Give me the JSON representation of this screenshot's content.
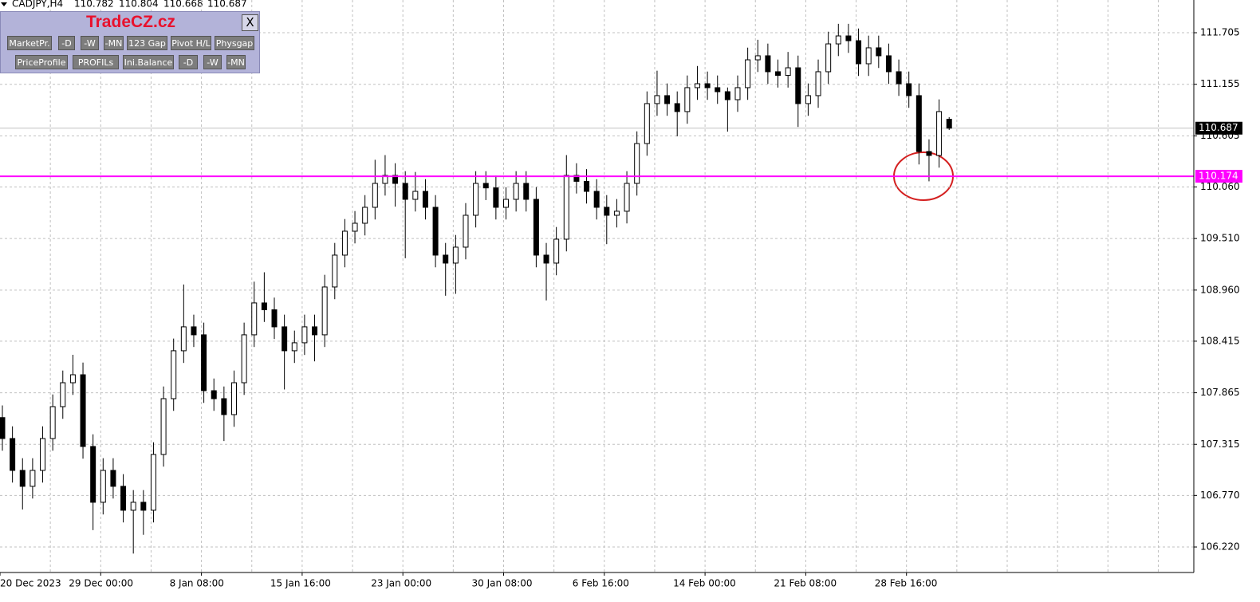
{
  "chart_data": {
    "type": "candlestick",
    "title": "CADJPY,H4",
    "categories": [
      "20 Dec 2023",
      null,
      null,
      null,
      null,
      null,
      null,
      null,
      null,
      null,
      "29 Dec 00:00",
      null,
      null,
      null,
      null,
      null,
      null,
      null,
      null,
      null,
      "8 Jan 08:00",
      null,
      null,
      null,
      null,
      null,
      null,
      null,
      null,
      null,
      "15 Jan 16:00",
      null,
      null,
      null,
      null,
      null,
      null,
      null,
      null,
      null,
      "23 Jan 00:00",
      null,
      null,
      null,
      null,
      null,
      null,
      null,
      null,
      null,
      "30 Jan 08:00",
      null,
      null,
      null,
      null,
      null,
      null,
      null,
      null,
      null,
      "6 Feb 16:00",
      null,
      null,
      null,
      null,
      null,
      null,
      null,
      null,
      null,
      "14 Feb 00:00",
      null,
      null,
      null,
      null,
      null,
      null,
      null,
      null,
      null,
      "21 Feb 08:00",
      null,
      null,
      null,
      null,
      null,
      null,
      null,
      null,
      null,
      "28 Feb 16:00",
      null,
      null,
      null,
      null
    ],
    "open": [
      107.6,
      107.377,
      107.037,
      106.867,
      107.037,
      107.377,
      107.717,
      107.972,
      108.057,
      107.292,
      106.697,
      107.037,
      106.867,
      106.612,
      106.697,
      106.612,
      107.207,
      107.802,
      108.313,
      108.568,
      108.483,
      107.887,
      107.802,
      107.632,
      107.972,
      108.483,
      108.823,
      108.75,
      108.568,
      108.313,
      108.398,
      108.568,
      108.483,
      108.993,
      109.333,
      109.588,
      109.673,
      109.843,
      110.098,
      110.183,
      110.098,
      109.928,
      110.013,
      109.843,
      109.333,
      109.248,
      109.418,
      109.758,
      110.098,
      110.05,
      109.843,
      109.928,
      110.098,
      109.928,
      109.333,
      109.248,
      109.503,
      110.183,
      110.12,
      110.013,
      109.843,
      109.758,
      109.801,
      110.098,
      110.523,
      110.949,
      111.034,
      110.949,
      110.864,
      111.119,
      111.161,
      111.119,
      111.076,
      110.991,
      111.119,
      111.416,
      111.459,
      111.289,
      111.25,
      111.331,
      110.949,
      111.034,
      111.289,
      111.586,
      111.671,
      111.62,
      111.374,
      111.544,
      111.459,
      111.289,
      111.161,
      111.034,
      110.438,
      110.396,
      110.782
    ],
    "high": [
      107.73,
      107.507,
      107.167,
      107.167,
      107.507,
      107.847,
      108.102,
      108.27,
      108.187,
      107.422,
      107.167,
      107.167,
      106.997,
      106.827,
      106.827,
      107.337,
      107.932,
      108.443,
      109.02,
      108.698,
      108.613,
      108.017,
      107.932,
      108.102,
      108.613,
      109.05,
      109.15,
      108.88,
      108.698,
      108.528,
      108.698,
      108.698,
      109.123,
      109.463,
      109.718,
      109.803,
      109.973,
      110.35,
      110.4,
      110.313,
      110.228,
      110.22,
      110.143,
      109.973,
      109.463,
      109.548,
      109.888,
      110.228,
      110.228,
      110.18,
      110.058,
      110.228,
      110.228,
      110.058,
      109.463,
      109.633,
      110.4,
      110.313,
      110.25,
      110.143,
      109.973,
      109.931,
      110.228,
      110.653,
      111.079,
      111.3,
      111.164,
      111.079,
      111.249,
      111.35,
      111.291,
      111.249,
      111.121,
      111.249,
      111.546,
      111.63,
      111.589,
      111.419,
      111.5,
      111.461,
      111.164,
      111.419,
      111.716,
      111.8,
      111.8,
      111.75,
      111.674,
      111.674,
      111.589,
      111.419,
      111.291,
      111.164,
      110.568,
      110.994,
      110.804
    ],
    "low": [
      107.247,
      106.907,
      106.62,
      106.737,
      106.907,
      107.247,
      107.587,
      107.842,
      107.162,
      106.4,
      106.567,
      106.737,
      106.482,
      106.15,
      106.35,
      106.482,
      107.077,
      107.672,
      108.183,
      108.353,
      107.757,
      107.672,
      107.35,
      107.502,
      107.842,
      108.353,
      108.62,
      108.438,
      107.9,
      108.183,
      108.268,
      108.2,
      108.353,
      108.863,
      109.203,
      109.458,
      109.543,
      109.713,
      109.968,
      109.85,
      109.3,
      109.798,
      109.713,
      109.203,
      108.9,
      108.92,
      109.288,
      109.628,
      109.92,
      109.713,
      109.713,
      109.798,
      109.798,
      109.203,
      108.85,
      109.118,
      109.373,
      109.99,
      109.883,
      109.713,
      109.45,
      109.628,
      109.671,
      109.968,
      110.393,
      110.819,
      110.819,
      110.6,
      110.734,
      110.989,
      110.989,
      110.946,
      110.65,
      110.861,
      110.989,
      111.286,
      111.159,
      111.12,
      111.12,
      110.7,
      110.819,
      110.904,
      111.159,
      111.456,
      111.49,
      111.244,
      111.244,
      111.329,
      111.159,
      111.031,
      110.904,
      110.3,
      110.12,
      110.266,
      110.668
    ],
    "close": [
      107.377,
      107.037,
      106.867,
      107.037,
      107.377,
      107.717,
      107.972,
      108.057,
      107.292,
      106.697,
      107.037,
      106.867,
      106.612,
      106.697,
      106.612,
      107.207,
      107.802,
      108.313,
      108.568,
      108.483,
      107.887,
      107.802,
      107.632,
      107.972,
      108.483,
      108.823,
      108.75,
      108.568,
      108.313,
      108.398,
      108.568,
      108.483,
      108.993,
      109.333,
      109.588,
      109.673,
      109.843,
      110.098,
      110.183,
      110.098,
      109.928,
      110.013,
      109.843,
      109.333,
      109.248,
      109.418,
      109.758,
      110.098,
      110.05,
      109.843,
      109.928,
      110.098,
      109.928,
      109.333,
      109.248,
      109.503,
      110.183,
      110.12,
      110.013,
      109.843,
      109.758,
      109.801,
      110.098,
      110.523,
      110.949,
      111.034,
      110.949,
      110.864,
      111.119,
      111.161,
      111.119,
      111.076,
      110.991,
      111.119,
      111.416,
      111.459,
      111.289,
      111.25,
      111.331,
      110.949,
      111.034,
      111.289,
      111.586,
      111.671,
      111.62,
      111.374,
      111.544,
      111.459,
      111.289,
      111.161,
      111.034,
      110.438,
      110.396,
      110.864,
      110.687
    ],
    "ylim": [
      105.948,
      112.054
    ],
    "yticks": [
      111.705,
      111.155,
      {
        "value": 110.605,
        "label": "110.605"
      },
      {
        "value": 110.06,
        "label": "110.060"
      },
      {
        "value": 109.51,
        "label": "109.510"
      },
      {
        "value": 108.96,
        "label": "108.960"
      },
      108.415,
      107.865,
      107.315,
      {
        "value": 106.77,
        "label": "106.770"
      },
      {
        "value": 106.22,
        "label": "106.220"
      }
    ],
    "grid": true,
    "hline": {
      "value": 110.174,
      "color": "#ff00ff"
    },
    "bull_color": "#ffffff",
    "bear_color": "#000000"
  },
  "panel": {
    "title": "TradeCZ.cz",
    "close": "X",
    "buttons": [
      [
        "MarketPr.",
        "-D",
        "-W",
        "-MN",
        "123 Gap",
        "Pivot H/L",
        "Physgap"
      ],
      [
        "PriceProfile",
        "PROFILs",
        "Ini.Balance",
        "-D",
        "-W",
        "-MN"
      ]
    ]
  }
}
